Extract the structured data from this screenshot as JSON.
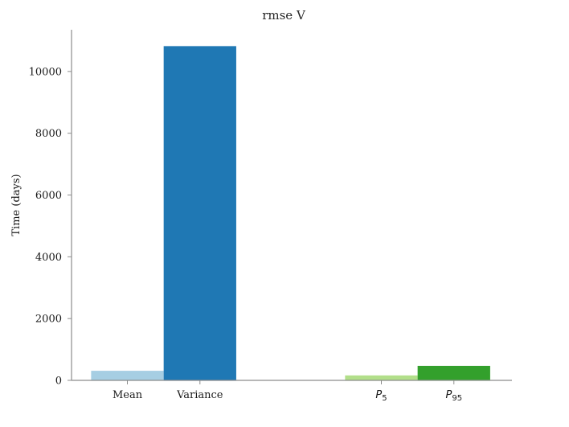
{
  "chart_data": {
    "type": "bar",
    "title": "rmse V",
    "xlabel": "",
    "ylabel": "Time (days)",
    "ylim": [
      0,
      11350
    ],
    "yticks": [
      0,
      2000,
      4000,
      6000,
      8000,
      10000
    ],
    "grid": false,
    "categories": [
      {
        "label": "Mean",
        "base": "",
        "sub": ""
      },
      {
        "label": "Variance",
        "base": "",
        "sub": ""
      },
      {
        "label": "",
        "base": "P",
        "sub": "5"
      },
      {
        "label": "",
        "base": "P",
        "sub": "95"
      }
    ],
    "x": [
      -0.5,
      0.5,
      3.0,
      4.0
    ],
    "xlim": [
      -1.27,
      4.8
    ],
    "values": [
      310,
      10820,
      160,
      470
    ],
    "colors": [
      "#a6cee3",
      "#1f78b4",
      "#b2df8a",
      "#33a02c"
    ]
  }
}
